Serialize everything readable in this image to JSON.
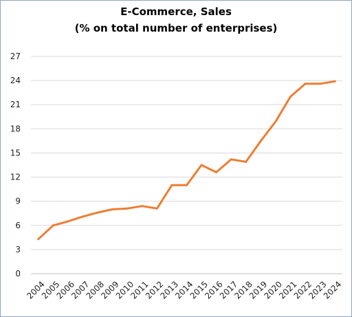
{
  "chart_data": {
    "type": "line",
    "title": "E-Commerce, Sales",
    "subtitle": "(% on total number of enterprises)",
    "xlabel": "",
    "ylabel": "",
    "x": [
      "2004",
      "2005",
      "2006",
      "2007",
      "2008",
      "2009",
      "2010",
      "2011",
      "2012",
      "2013",
      "2014",
      "2015",
      "2016",
      "2017",
      "2018",
      "2019",
      "2020",
      "2021",
      "2022",
      "2023",
      "2024"
    ],
    "series": [
      {
        "values": [
          4.3,
          6.0,
          6.5,
          7.1,
          7.6,
          8.0,
          8.1,
          8.4,
          8.1,
          11.0,
          11.0,
          13.5,
          12.6,
          14.2,
          13.9,
          16.5,
          18.9,
          22.0,
          23.6,
          23.6,
          23.9
        ],
        "color": "#ed7d31"
      }
    ],
    "ylim": [
      0,
      27
    ],
    "yticks": [
      0,
      3,
      6,
      9,
      12,
      15,
      18,
      21,
      24,
      27
    ],
    "grid": "horizontal",
    "legend": "none"
  }
}
